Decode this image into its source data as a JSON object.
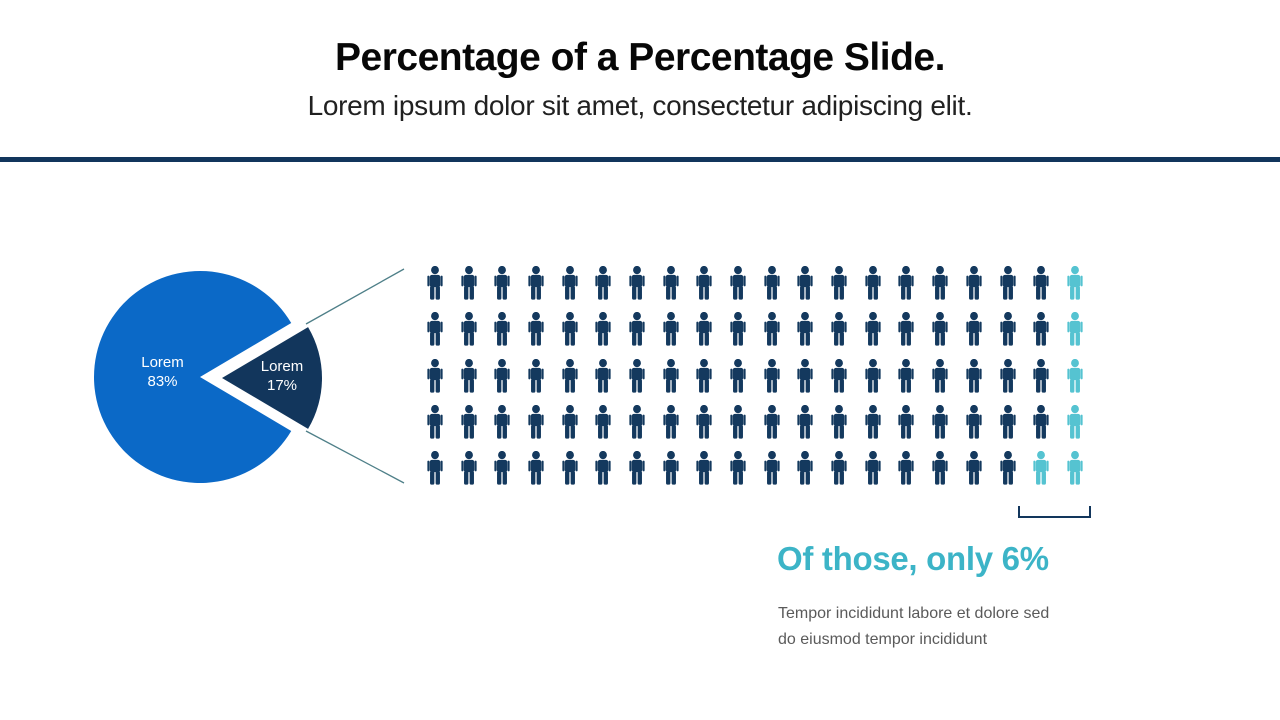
{
  "slide": {
    "title": "Percentage of a Percentage Slide.",
    "subtitle": "Lorem ipsum dolor sit amet, consectetur adipiscing elit.",
    "divider_color": "#11355c"
  },
  "pie_labels": {
    "major": {
      "line1": "Lorem",
      "line2": "83%"
    },
    "minor": {
      "line1": "Lorem",
      "line2": "17%"
    }
  },
  "callout": {
    "heading": "Of those, only 6%",
    "heading_color": "#3cb4c7",
    "body": [
      "Tempor incididunt labore et dolore sed",
      "do eiusmod tempor incididunt"
    ]
  },
  "connector_color": "#4e7f88",
  "chart_data": [
    {
      "type": "pie",
      "title": "Percentage of a Percentage Slide.",
      "labels": [
        "Lorem",
        "Lorem"
      ],
      "values": [
        83,
        17
      ],
      "unit": "%",
      "colors": [
        "#0b69c7",
        "#12365c"
      ],
      "exploded_index": 1,
      "annotations": [
        "Lorem 83%",
        "Lorem 17%"
      ]
    },
    {
      "type": "pictogram",
      "icon": "person",
      "rows": 5,
      "cols": 20,
      "total": 100,
      "highlighted": 6,
      "highlight_cells_row_col": [
        [
          1,
          20
        ],
        [
          2,
          20
        ],
        [
          3,
          20
        ],
        [
          4,
          20
        ],
        [
          5,
          19
        ],
        [
          5,
          20
        ]
      ],
      "base_color": "#14395e",
      "highlight_color": "#55c3d1",
      "caption": "Of those, only 6%",
      "note": [
        "Tempor incididunt labore et dolore sed",
        "do eiusmod tempor incididunt"
      ]
    }
  ]
}
